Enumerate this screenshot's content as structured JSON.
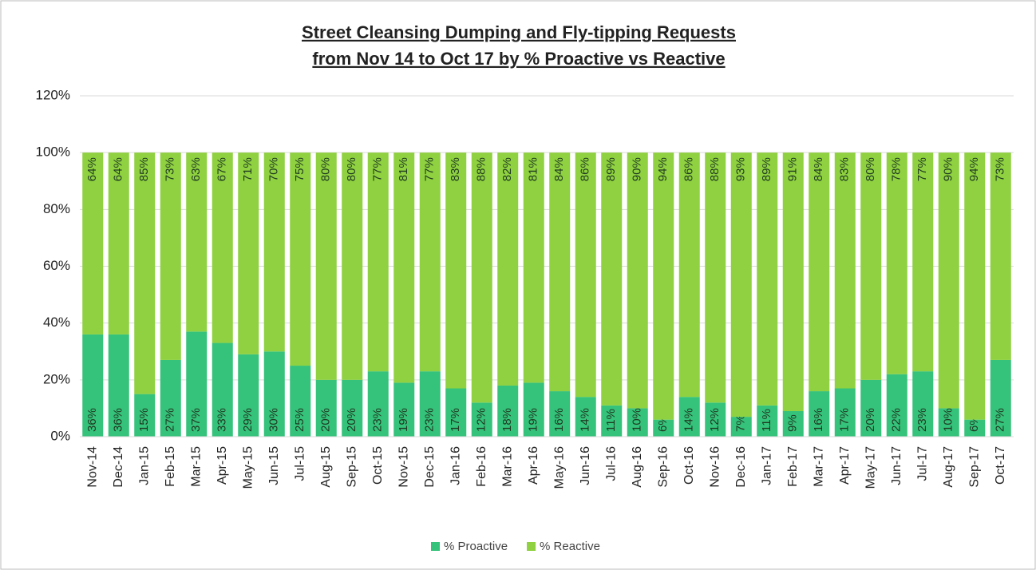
{
  "chart_data": {
    "type": "stacked_bar",
    "title": [
      "Street Cleansing Dumping and Fly-tipping Requests",
      "from Nov 14 to Oct 17 by %  Proactive vs Reactive"
    ],
    "categories": [
      "Nov-14",
      "Dec-14",
      "Jan-15",
      "Feb-15",
      "Mar-15",
      "Apr-15",
      "May-15",
      "Jun-15",
      "Jul-15",
      "Aug-15",
      "Sep-15",
      "Oct-15",
      "Nov-15",
      "Dec-15",
      "Jan-16",
      "Feb-16",
      "Mar-16",
      "Apr-16",
      "May-16",
      "Jun-16",
      "Jul-16",
      "Aug-16",
      "Sep-16",
      "Oct-16",
      "Nov-16",
      "Dec-16",
      "Jan-17",
      "Feb-17",
      "Mar-17",
      "Apr-17",
      "May-17",
      "Jun-17",
      "Jul-17",
      "Aug-17",
      "Sep-17",
      "Oct-17"
    ],
    "series": [
      {
        "name": "% Proactive",
        "color": "#35c27a",
        "values": [
          36,
          36,
          15,
          27,
          37,
          33,
          29,
          30,
          25,
          20,
          20,
          23,
          19,
          23,
          17,
          12,
          18,
          19,
          16,
          14,
          11,
          10,
          6,
          14,
          12,
          7,
          11,
          9,
          16,
          17,
          20,
          22,
          23,
          10,
          6,
          27
        ],
        "value_labels": [
          "36%",
          "36%",
          "15%",
          "27%",
          "37%",
          "33%",
          "29%",
          "30%",
          "25%",
          "20%",
          "20%",
          "23%",
          "19%",
          "23%",
          "17%",
          "12%",
          "18%",
          "19%",
          "16%",
          "14%",
          "11%",
          "10%",
          "6%",
          "14%",
          "12%",
          "7%",
          "11%",
          "9%",
          "16%",
          "17%",
          "20%",
          "22%",
          "23%",
          "10%",
          "6%",
          "27%"
        ]
      },
      {
        "name": "% Reactive",
        "color": "#8fd140",
        "values": [
          64,
          64,
          85,
          73,
          63,
          67,
          71,
          70,
          75,
          80,
          80,
          77,
          81,
          77,
          83,
          88,
          82,
          81,
          84,
          86,
          89,
          90,
          94,
          86,
          88,
          93,
          89,
          91,
          84,
          83,
          80,
          78,
          77,
          90,
          94,
          73
        ],
        "value_labels": [
          "64%",
          "64%",
          "85%",
          "73%",
          "63%",
          "67%",
          "71%",
          "70%",
          "75%",
          "80%",
          "80%",
          "77%",
          "81%",
          "77%",
          "83%",
          "88%",
          "82%",
          "81%",
          "84%",
          "86%",
          "89%",
          "90%",
          "94%",
          "86%",
          "88%",
          "93%",
          "89%",
          "91%",
          "84%",
          "83%",
          "80%",
          "78%",
          "77%",
          "90%",
          "94%",
          "73%"
        ]
      }
    ],
    "ylim": [
      0,
      120
    ],
    "yticks": [
      {
        "value": 0,
        "label": "0%"
      },
      {
        "value": 20,
        "label": "20%"
      },
      {
        "value": 40,
        "label": "40%"
      },
      {
        "value": 60,
        "label": "60%"
      },
      {
        "value": 80,
        "label": "80%"
      },
      {
        "value": 100,
        "label": "100%"
      },
      {
        "value": 120,
        "label": "120%"
      }
    ],
    "grid": true,
    "legend": "bottom"
  }
}
